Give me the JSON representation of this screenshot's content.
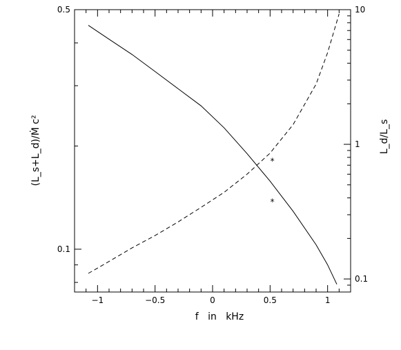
{
  "chart_data": {
    "type": "line",
    "title": "",
    "xlabel": "f   in   kHz",
    "ylabel_left": "(L_s+L_d)/Ṁ c²",
    "ylabel_right": "L_d/L_s",
    "xlim": [
      -1.2,
      1.2
    ],
    "ylim_left": [
      0.075,
      0.5
    ],
    "ylim_right": [
      0.08,
      10
    ],
    "yscale_left": "log",
    "yscale_right": "log",
    "xticks": [
      {
        "v": -1,
        "label": "−1"
      },
      {
        "v": -0.5,
        "label": "−0.5"
      },
      {
        "v": 0,
        "label": "0"
      },
      {
        "v": 0.5,
        "label": "0.5"
      },
      {
        "v": 1,
        "label": "1"
      }
    ],
    "yticks_left_labeled": [
      {
        "v": 0.1,
        "label": "0.1"
      },
      {
        "v": 0.5,
        "label": "0.5"
      }
    ],
    "yticks_right_labeled": [
      {
        "v": 0.1,
        "label": "0.1"
      },
      {
        "v": 1,
        "label": "1"
      },
      {
        "v": 10,
        "label": "10"
      }
    ],
    "series": [
      {
        "axis": "left",
        "style": "solid",
        "x": [
          -1.08,
          -0.9,
          -0.7,
          -0.5,
          -0.3,
          -0.1,
          0.1,
          0.3,
          0.5,
          0.7,
          0.9,
          1.0,
          1.08
        ],
        "y": [
          0.45,
          0.41,
          0.37,
          0.33,
          0.294,
          0.262,
          0.226,
          0.19,
          0.158,
          0.129,
          0.103,
          0.09,
          0.079
        ]
      },
      {
        "axis": "right",
        "style": "dashed",
        "x": [
          -1.08,
          -0.9,
          -0.7,
          -0.5,
          -0.3,
          -0.1,
          0.1,
          0.3,
          0.5,
          0.7,
          0.9,
          1.0,
          1.1
        ],
        "y": [
          0.11,
          0.135,
          0.17,
          0.21,
          0.265,
          0.34,
          0.44,
          0.6,
          0.86,
          1.4,
          2.8,
          4.8,
          9.3
        ]
      }
    ],
    "markers": [
      {
        "symbol": "*",
        "x": 0.52,
        "y_left": 0.14
      },
      {
        "symbol": "*",
        "x": 0.52,
        "y_left": 0.184
      }
    ]
  }
}
